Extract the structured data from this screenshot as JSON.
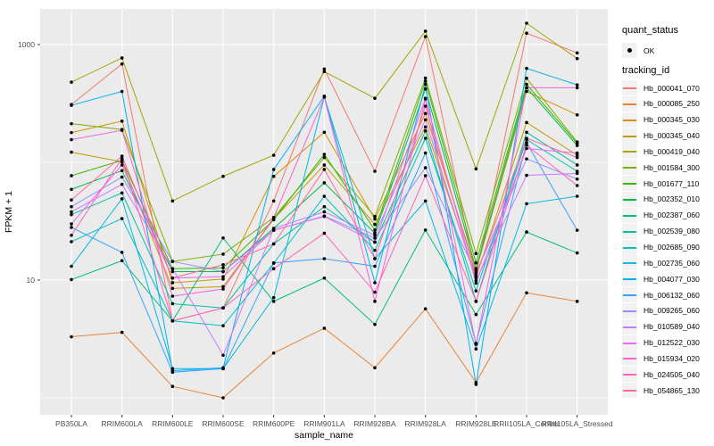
{
  "chart_data": {
    "type": "line",
    "xlabel": "sample_name",
    "ylabel": "FPKM + 1",
    "y_scale": "log10",
    "x_categories": [
      "PB350LA",
      "RRIM600LA",
      "RRIM600LE",
      "RRIM600SE",
      "RRIM600PE",
      "RRIM901LA",
      "RRIM928BA",
      "RRIM928LA",
      "RRIM928LE",
      "RRII105LA_Control",
      "RRII105LA_Stressed"
    ],
    "y_ticks": [
      {
        "value": 10,
        "label": "10"
      },
      {
        "value": 1000,
        "label": "1000"
      }
    ],
    "y_minor_ticks": [
      1,
      100
    ],
    "ylim": [
      0.72,
      2000
    ],
    "grid": true,
    "panel_bg": "#EBEBEB",
    "grid_color": "#FFFFFF",
    "tick_color": "#333333",
    "tick_label_color": "#4D4D4D",
    "point_color": "#000000",
    "legend": {
      "quant_title": "quant_status",
      "quant_items": [
        "OK"
      ],
      "tracking_title": "tracking_id"
    },
    "series": [
      {
        "name": "Hb_000041_070",
        "color": "#F8766D",
        "values": [
          310,
          685,
          4.5,
          5.8,
          47,
          620,
          84,
          1170,
          11,
          1250,
          850
        ]
      },
      {
        "name": "Hb_000085_250",
        "color": "#EA8331",
        "values": [
          3.3,
          3.6,
          1.25,
          1.0,
          2.4,
          3.9,
          1.8,
          5.7,
          1.35,
          7.8,
          6.6
        ]
      },
      {
        "name": "Hb_000345_030",
        "color": "#D89000",
        "values": [
          179,
          224,
          9.5,
          10.2,
          76,
          180,
          33,
          260,
          12,
          400,
          253
        ]
      },
      {
        "name": "Hb_000345_040",
        "color": "#C09B00",
        "values": [
          122,
          101,
          8.5,
          8.8,
          33,
          95,
          29.7,
          200,
          10.5,
          218,
          115
        ]
      },
      {
        "name": "Hb_000419_040",
        "color": "#A3A500",
        "values": [
          480,
          770,
          47,
          76,
          115,
          590,
          350,
          1300,
          88,
          1520,
          760
        ]
      },
      {
        "name": "Hb_001584_300",
        "color": "#7CAE00",
        "values": [
          213,
          190,
          14.4,
          16.6,
          34,
          110,
          34.7,
          520,
          16.8,
          518,
          149
        ]
      },
      {
        "name": "Hb_001677_110",
        "color": "#39B600",
        "values": [
          77,
          104,
          12.5,
          12.7,
          32.5,
          117,
          26.6,
          490,
          14,
          460,
          145
        ]
      },
      {
        "name": "Hb_002352_010",
        "color": "#00BB4E",
        "values": [
          59,
          85,
          11.8,
          11.8,
          27.5,
          67,
          25,
          420,
          12.5,
          430,
          139
        ]
      },
      {
        "name": "Hb_002387_060",
        "color": "#00BF7D",
        "values": [
          10.1,
          14.6,
          4.5,
          22.8,
          6.6,
          10.4,
          4.2,
          26.6,
          5.1,
          25.6,
          17
        ]
      },
      {
        "name": "Hb_002539_080",
        "color": "#00C1A3",
        "values": [
          36,
          55,
          6.3,
          5.8,
          20.3,
          42,
          21,
          185,
          6.6,
          180,
          95
        ]
      },
      {
        "name": "Hb_002685_090",
        "color": "#00BFC4",
        "values": [
          21.2,
          33.3,
          4.5,
          4.1,
          13.9,
          51.5,
          17.9,
          160,
          8.1,
          156,
          84
        ]
      },
      {
        "name": "Hb_002735_060",
        "color": "#00BAE0",
        "values": [
          13.1,
          49,
          1.77,
          1.77,
          7.1,
          360,
          15.2,
          47,
          2.6,
          44.5,
          51.5
        ]
      },
      {
        "name": "Hb_004077_030",
        "color": "#00B0F6",
        "values": [
          305,
          400,
          1.7,
          1.8,
          87,
          365,
          9.5,
          460,
          1.3,
          628,
          455
        ]
      },
      {
        "name": "Hb_006132_060",
        "color": "#35A2FF",
        "values": [
          28,
          17.2,
          1.65,
          1.77,
          14,
          15.2,
          13.1,
          120,
          2.9,
          147,
          26.5
        ]
      },
      {
        "name": "Hb_009265_060",
        "color": "#9590FF",
        "values": [
          42,
          75,
          14.4,
          11.8,
          26.5,
          35,
          22.7,
          90,
          11.5,
          107,
          72
        ]
      },
      {
        "name": "Hb_010589_040",
        "color": "#C77CFF",
        "values": [
          38,
          65,
          12.5,
          2.3,
          27.5,
          38,
          24,
          230,
          9.9,
          77.6,
          80.5
        ]
      },
      {
        "name": "Hb_012522_030",
        "color": "#E76BF3",
        "values": [
          30,
          95,
          10.4,
          10.7,
          26.5,
          34.7,
          21,
          350,
          9.4,
          131,
          120
        ]
      },
      {
        "name": "Hb_015934_020",
        "color": "#FA62DB",
        "values": [
          156,
          187,
          7.3,
          8.4,
          34,
          358,
          6.6,
          345,
          2.85,
          430,
          430
        ]
      },
      {
        "name": "Hb_024505_040",
        "color": "#FF62BC",
        "values": [
          24,
          108,
          4.5,
          5.8,
          12.5,
          25,
          7.9,
          77,
          6.6,
          140,
          63.5
        ]
      },
      {
        "name": "Hb_054865_130",
        "color": "#FF6A98",
        "values": [
          48,
          113,
          10.4,
          13.5,
          20.3,
          87,
          15.2,
          300,
          11,
          160,
          110
        ]
      }
    ]
  }
}
